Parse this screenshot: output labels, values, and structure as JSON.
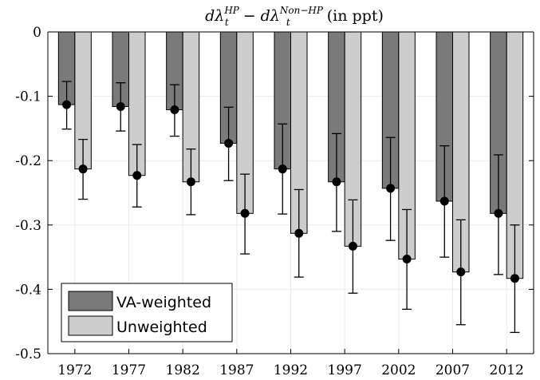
{
  "chart_data": {
    "type": "bar",
    "title": "dλ_t^HP − dλ_t^Non−HP (in ppt)",
    "title_parts": {
      "base1": "dλ",
      "sub1": "t",
      "sup1": "HP",
      "minus": "−",
      "base2": "dλ",
      "sub2": "t",
      "sup2": "Non−HP",
      "unit": "(in ppt)"
    },
    "categories": [
      "1972",
      "1977",
      "1982",
      "1987",
      "1992",
      "1997",
      "2002",
      "2007",
      "2012"
    ],
    "ylim": [
      -0.5,
      0
    ],
    "yticks": [
      0,
      -0.1,
      -0.2,
      -0.3,
      -0.4,
      -0.5
    ],
    "ytick_labels": [
      "0",
      "-0.1",
      "-0.2",
      "-0.3",
      "-0.4",
      "-0.5"
    ],
    "grid": true,
    "legend_position": "bottom-left",
    "series": [
      {
        "name": "VA-weighted",
        "color": "#7a7a7a",
        "values": [
          -0.113,
          -0.116,
          -0.121,
          -0.173,
          -0.213,
          -0.233,
          -0.243,
          -0.263,
          -0.282
        ],
        "ci_upper": [
          -0.077,
          -0.079,
          -0.082,
          -0.117,
          -0.143,
          -0.158,
          -0.164,
          -0.177,
          -0.191
        ],
        "ci_lower": [
          -0.151,
          -0.154,
          -0.162,
          -0.231,
          -0.283,
          -0.31,
          -0.324,
          -0.35,
          -0.377
        ]
      },
      {
        "name": "Unweighted",
        "color": "#cdcdcd",
        "values": [
          -0.213,
          -0.223,
          -0.233,
          -0.282,
          -0.313,
          -0.333,
          -0.353,
          -0.373,
          -0.383
        ],
        "ci_upper": [
          -0.167,
          -0.175,
          -0.182,
          -0.221,
          -0.245,
          -0.261,
          -0.276,
          -0.292,
          -0.3
        ],
        "ci_lower": [
          -0.26,
          -0.272,
          -0.284,
          -0.345,
          -0.381,
          -0.406,
          -0.431,
          -0.455,
          -0.467
        ]
      }
    ]
  }
}
